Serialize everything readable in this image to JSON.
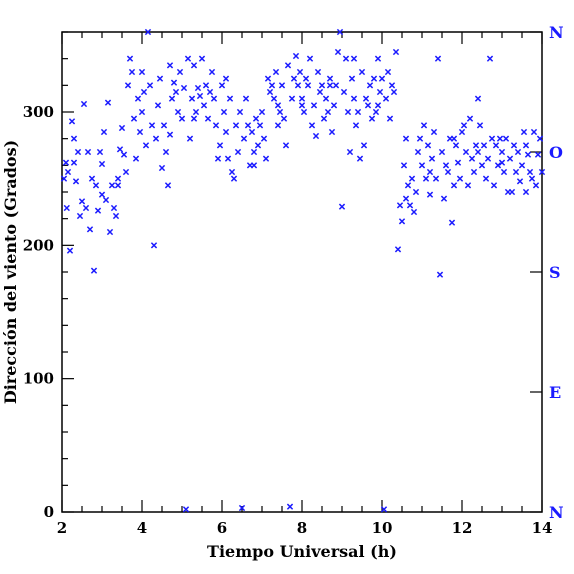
{
  "chart_data": {
    "type": "scatter",
    "title": "",
    "xlabel": "Tiempo Universal (h)",
    "ylabel": "Dirección del viento (Grados)",
    "xlim": [
      2,
      14
    ],
    "ylim": [
      0,
      360
    ],
    "xticks": [
      2,
      4,
      6,
      8,
      10,
      12,
      14
    ],
    "yticks": [
      0,
      100,
      200,
      300
    ],
    "x_minor_step": 0.5,
    "y_minor_step": 20,
    "grid": false,
    "legend": "none",
    "marker": "x",
    "marker_color": "#1a1aff",
    "right_axis_labels": [
      {
        "label": "N",
        "y": 360
      },
      {
        "label": "O",
        "y": 270
      },
      {
        "label": "S",
        "y": 180
      },
      {
        "label": "E",
        "y": 90
      },
      {
        "label": "N",
        "y": 0
      }
    ],
    "series": [
      {
        "points": [
          [
            2.05,
            250
          ],
          [
            2.1,
            262
          ],
          [
            2.12,
            228
          ],
          [
            2.15,
            255
          ],
          [
            2.2,
            196
          ],
          [
            2.25,
            293
          ],
          [
            2.3,
            280
          ],
          [
            2.35,
            248
          ],
          [
            2.4,
            270
          ],
          [
            2.45,
            222
          ],
          [
            2.5,
            233
          ],
          [
            2.55,
            306
          ],
          [
            2.6,
            228
          ],
          [
            2.65,
            270
          ],
          [
            2.7,
            212
          ],
          [
            2.75,
            250
          ],
          [
            2.8,
            181
          ],
          [
            2.85,
            245
          ],
          [
            2.9,
            226
          ],
          [
            2.95,
            270
          ],
          [
            3.0,
            261
          ],
          [
            3.05,
            285
          ],
          [
            3.1,
            234
          ],
          [
            3.15,
            307
          ],
          [
            3.2,
            210
          ],
          [
            3.25,
            245
          ],
          [
            3.3,
            228
          ],
          [
            3.35,
            222
          ],
          [
            3.4,
            250
          ],
          [
            3.45,
            272
          ],
          [
            3.5,
            288
          ],
          [
            3.55,
            268
          ],
          [
            3.6,
            255
          ],
          [
            3.65,
            320
          ],
          [
            3.7,
            340
          ],
          [
            3.75,
            330
          ],
          [
            3.8,
            295
          ],
          [
            3.85,
            265
          ],
          [
            3.9,
            310
          ],
          [
            3.95,
            285
          ],
          [
            4.0,
            300
          ],
          [
            4.05,
            315
          ],
          [
            4.1,
            275
          ],
          [
            4.15,
            360
          ],
          [
            4.2,
            320
          ],
          [
            4.25,
            290
          ],
          [
            4.3,
            200
          ],
          [
            4.35,
            280
          ],
          [
            4.4,
            305
          ],
          [
            4.45,
            325
          ],
          [
            4.5,
            258
          ],
          [
            4.55,
            290
          ],
          [
            4.6,
            270
          ],
          [
            4.65,
            245
          ],
          [
            4.7,
            335
          ],
          [
            4.75,
            310
          ],
          [
            4.8,
            322
          ],
          [
            4.85,
            315
          ],
          [
            4.9,
            300
          ],
          [
            4.95,
            330
          ],
          [
            5.0,
            295
          ],
          [
            5.05,
            318
          ],
          [
            5.1,
            2
          ],
          [
            5.15,
            340
          ],
          [
            5.2,
            280
          ],
          [
            5.25,
            310
          ],
          [
            5.3,
            335
          ],
          [
            5.35,
            300
          ],
          [
            5.4,
            318
          ],
          [
            5.45,
            312
          ],
          [
            5.5,
            340
          ],
          [
            5.55,
            305
          ],
          [
            5.6,
            320
          ],
          [
            5.65,
            295
          ],
          [
            5.7,
            315
          ],
          [
            5.75,
            330
          ],
          [
            5.8,
            310
          ],
          [
            5.85,
            290
          ],
          [
            5.9,
            265
          ],
          [
            5.95,
            275
          ],
          [
            6.0,
            320
          ],
          [
            6.05,
            300
          ],
          [
            6.1,
            285
          ],
          [
            6.15,
            265
          ],
          [
            6.2,
            310
          ],
          [
            6.25,
            255
          ],
          [
            6.3,
            250
          ],
          [
            6.35,
            290
          ],
          [
            6.4,
            270
          ],
          [
            6.45,
            300
          ],
          [
            6.5,
            3
          ],
          [
            6.55,
            280
          ],
          [
            6.6,
            310
          ],
          [
            6.65,
            290
          ],
          [
            6.7,
            260
          ],
          [
            6.75,
            285
          ],
          [
            6.8,
            270
          ],
          [
            6.85,
            295
          ],
          [
            6.9,
            275
          ],
          [
            6.95,
            290
          ],
          [
            7.0,
            300
          ],
          [
            7.05,
            280
          ],
          [
            7.1,
            265
          ],
          [
            7.15,
            325
          ],
          [
            7.2,
            315
          ],
          [
            7.25,
            320
          ],
          [
            7.3,
            310
          ],
          [
            7.35,
            330
          ],
          [
            7.4,
            305
          ],
          [
            7.45,
            300
          ],
          [
            7.5,
            320
          ],
          [
            7.55,
            295
          ],
          [
            7.6,
            275
          ],
          [
            7.65,
            335
          ],
          [
            7.7,
            4
          ],
          [
            7.75,
            310
          ],
          [
            7.8,
            325
          ],
          [
            7.85,
            342
          ],
          [
            7.9,
            320
          ],
          [
            7.95,
            330
          ],
          [
            8.0,
            310
          ],
          [
            8.05,
            300
          ],
          [
            8.1,
            325
          ],
          [
            8.15,
            320
          ],
          [
            8.2,
            340
          ],
          [
            8.25,
            290
          ],
          [
            8.3,
            305
          ],
          [
            8.35,
            282
          ],
          [
            8.4,
            330
          ],
          [
            8.45,
            315
          ],
          [
            8.5,
            320
          ],
          [
            8.55,
            295
          ],
          [
            8.6,
            310
          ],
          [
            8.65,
            300
          ],
          [
            8.7,
            325
          ],
          [
            8.75,
            285
          ],
          [
            8.8,
            305
          ],
          [
            8.85,
            320
          ],
          [
            8.9,
            345
          ],
          [
            8.95,
            360
          ],
          [
            9.0,
            229
          ],
          [
            9.05,
            315
          ],
          [
            9.1,
            340
          ],
          [
            9.15,
            300
          ],
          [
            9.2,
            270
          ],
          [
            9.25,
            325
          ],
          [
            9.3,
            310
          ],
          [
            9.35,
            290
          ],
          [
            9.4,
            300
          ],
          [
            9.45,
            265
          ],
          [
            9.5,
            330
          ],
          [
            9.55,
            275
          ],
          [
            9.6,
            310
          ],
          [
            9.65,
            305
          ],
          [
            9.7,
            320
          ],
          [
            9.75,
            295
          ],
          [
            9.8,
            325
          ],
          [
            9.85,
            300
          ],
          [
            9.9,
            340
          ],
          [
            9.95,
            315
          ],
          [
            10.0,
            325
          ],
          [
            10.05,
            2
          ],
          [
            10.1,
            310
          ],
          [
            10.15,
            330
          ],
          [
            10.2,
            295
          ],
          [
            10.25,
            320
          ],
          [
            10.3,
            315
          ],
          [
            10.35,
            345
          ],
          [
            10.4,
            197
          ],
          [
            10.45,
            230
          ],
          [
            10.5,
            218
          ],
          [
            10.55,
            260
          ],
          [
            10.6,
            280
          ],
          [
            10.65,
            245
          ],
          [
            10.7,
            230
          ],
          [
            10.75,
            250
          ],
          [
            10.8,
            225
          ],
          [
            10.85,
            240
          ],
          [
            10.9,
            270
          ],
          [
            10.95,
            280
          ],
          [
            11.0,
            260
          ],
          [
            11.05,
            290
          ],
          [
            11.1,
            250
          ],
          [
            11.15,
            275
          ],
          [
            11.2,
            238
          ],
          [
            11.25,
            265
          ],
          [
            11.3,
            285
          ],
          [
            11.35,
            250
          ],
          [
            11.4,
            340
          ],
          [
            11.45,
            178
          ],
          [
            11.5,
            270
          ],
          [
            11.55,
            235
          ],
          [
            11.6,
            260
          ],
          [
            11.65,
            255
          ],
          [
            11.7,
            280
          ],
          [
            11.75,
            217
          ],
          [
            11.8,
            245
          ],
          [
            11.85,
            275
          ],
          [
            11.9,
            262
          ],
          [
            11.95,
            250
          ],
          [
            12.0,
            285
          ],
          [
            12.05,
            290
          ],
          [
            12.1,
            270
          ],
          [
            12.15,
            245
          ],
          [
            12.2,
            295
          ],
          [
            12.25,
            265
          ],
          [
            12.3,
            255
          ],
          [
            12.35,
            275
          ],
          [
            12.4,
            310
          ],
          [
            12.45,
            290
          ],
          [
            12.5,
            260
          ],
          [
            12.55,
            275
          ],
          [
            12.6,
            250
          ],
          [
            12.65,
            265
          ],
          [
            12.7,
            340
          ],
          [
            12.75,
            280
          ],
          [
            12.8,
            245
          ],
          [
            12.85,
            275
          ],
          [
            12.9,
            260
          ],
          [
            12.95,
            280
          ],
          [
            13.0,
            270
          ],
          [
            13.05,
            255
          ],
          [
            13.1,
            280
          ],
          [
            13.15,
            240
          ],
          [
            13.2,
            265
          ],
          [
            13.25,
            240
          ],
          [
            13.3,
            275
          ],
          [
            13.35,
            255
          ],
          [
            13.4,
            270
          ],
          [
            13.45,
            248
          ],
          [
            13.5,
            260
          ],
          [
            13.55,
            285
          ],
          [
            13.6,
            240
          ],
          [
            13.65,
            268
          ],
          [
            13.7,
            255
          ],
          [
            13.75,
            250
          ],
          [
            13.8,
            285
          ],
          [
            13.85,
            245
          ],
          [
            13.9,
            268
          ],
          [
            13.95,
            280
          ],
          [
            14.0,
            255
          ],
          [
            2.3,
            262
          ],
          [
            3.0,
            238
          ],
          [
            3.4,
            245
          ],
          [
            4.0,
            330
          ],
          [
            4.7,
            283
          ],
          [
            5.3,
            295
          ],
          [
            6.1,
            325
          ],
          [
            6.8,
            260
          ],
          [
            7.4,
            290
          ],
          [
            8.0,
            305
          ],
          [
            8.7,
            320
          ],
          [
            9.3,
            340
          ],
          [
            9.9,
            305
          ],
          [
            10.6,
            235
          ],
          [
            11.2,
            255
          ],
          [
            11.8,
            280
          ],
          [
            12.4,
            270
          ],
          [
            13.0,
            262
          ],
          [
            13.6,
            275
          ]
        ]
      }
    ]
  }
}
